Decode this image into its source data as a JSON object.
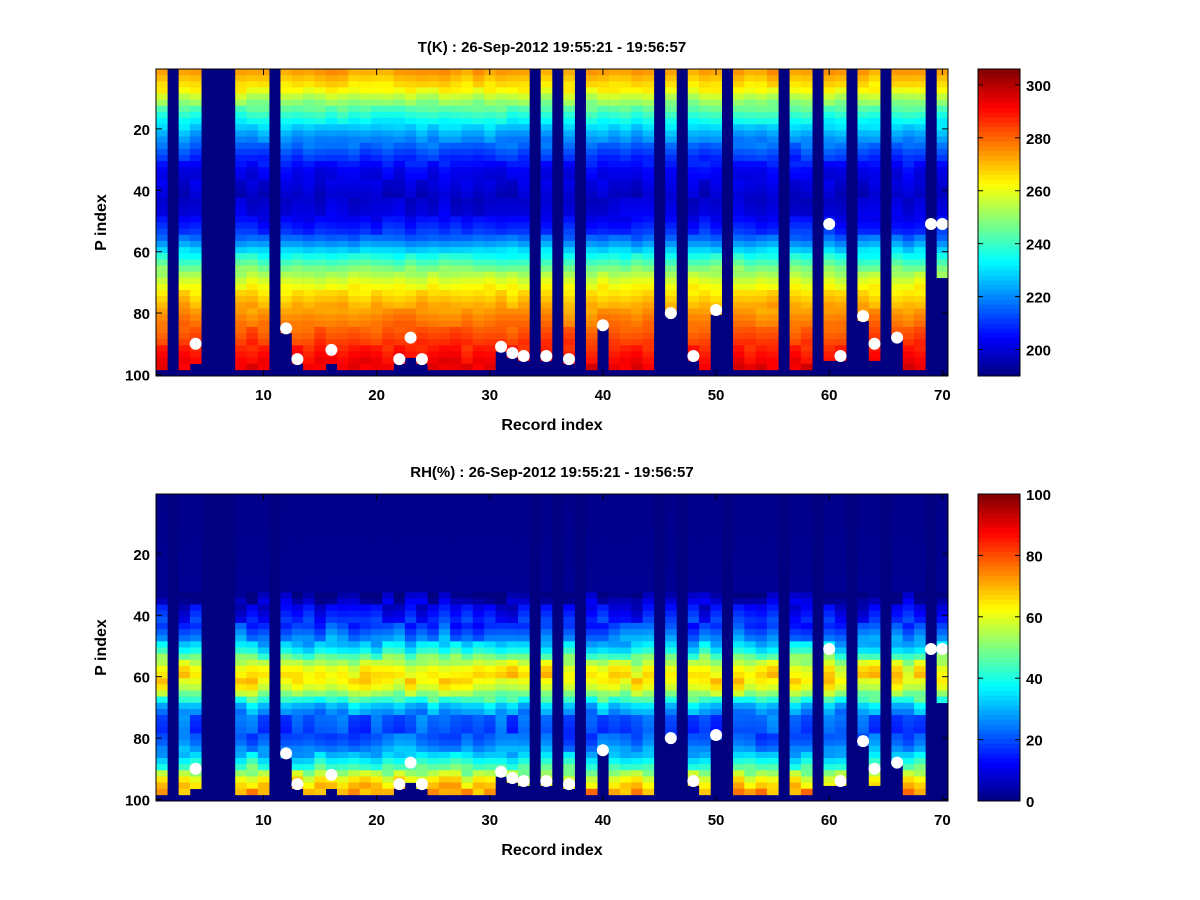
{
  "chart_data": [
    {
      "type": "heatmap",
      "title": "T(K) : 26-Sep-2012 19:55:21 - 19:56:57",
      "xlabel": "Record index",
      "ylabel": "P index",
      "xlim": [
        0.5,
        70.5
      ],
      "ylim": [
        0.5,
        100.5
      ],
      "y_reversed": true,
      "grid": false,
      "colormap": "jet",
      "xticks": [
        10,
        20,
        30,
        40,
        50,
        60,
        70
      ],
      "yticks": [
        20,
        40,
        60,
        80,
        100
      ],
      "colorbar": {
        "range": [
          190,
          306
        ],
        "ticks": [
          200,
          220,
          240,
          260,
          280,
          300
        ]
      },
      "temperature_profile_K": [
        [
          1,
          275
        ],
        [
          5,
          268
        ],
        [
          8,
          262
        ],
        [
          10,
          255
        ],
        [
          13,
          246
        ],
        [
          17,
          236
        ],
        [
          22,
          224
        ],
        [
          28,
          213
        ],
        [
          34,
          203
        ],
        [
          42,
          198
        ],
        [
          48,
          201
        ],
        [
          54,
          210
        ],
        [
          58,
          222
        ],
        [
          62,
          236
        ],
        [
          66,
          248
        ],
        [
          70,
          258
        ],
        [
          74,
          266
        ],
        [
          78,
          272
        ],
        [
          82,
          277
        ],
        [
          88,
          283
        ],
        [
          93,
          289
        ],
        [
          100,
          296
        ]
      ],
      "profile_columns": [
        1,
        3,
        4,
        8,
        9,
        10,
        12,
        13,
        14,
        15,
        16,
        17,
        18,
        19,
        20,
        21,
        22,
        23,
        24,
        25,
        26,
        27,
        28,
        29,
        30,
        31,
        32,
        33,
        35,
        37,
        39,
        40,
        41,
        42,
        43,
        44,
        46,
        48,
        49,
        50,
        52,
        53,
        54,
        55,
        57,
        58,
        60,
        61,
        63,
        64,
        66,
        67,
        68,
        70
      ],
      "surface_levels": [
        {
          "x": 1,
          "y": 98
        },
        {
          "x": 3,
          "y": 98
        },
        {
          "x": 4,
          "y": 96
        },
        {
          "x": 8,
          "y": 98
        },
        {
          "x": 9,
          "y": 98
        },
        {
          "x": 10,
          "y": 98
        },
        {
          "x": 12,
          "y": 86
        },
        {
          "x": 13,
          "y": 96
        },
        {
          "x": 14,
          "y": 98
        },
        {
          "x": 15,
          "y": 98
        },
        {
          "x": 16,
          "y": 96
        },
        {
          "x": 17,
          "y": 98
        },
        {
          "x": 18,
          "y": 98
        },
        {
          "x": 19,
          "y": 98
        },
        {
          "x": 20,
          "y": 98
        },
        {
          "x": 21,
          "y": 98
        },
        {
          "x": 22,
          "y": 96
        },
        {
          "x": 23,
          "y": 94
        },
        {
          "x": 24,
          "y": 96
        },
        {
          "x": 25,
          "y": 98
        },
        {
          "x": 26,
          "y": 98
        },
        {
          "x": 27,
          "y": 98
        },
        {
          "x": 28,
          "y": 98
        },
        {
          "x": 29,
          "y": 98
        },
        {
          "x": 30,
          "y": 98
        },
        {
          "x": 31,
          "y": 92
        },
        {
          "x": 32,
          "y": 94
        },
        {
          "x": 33,
          "y": 95
        },
        {
          "x": 35,
          "y": 95
        },
        {
          "x": 37,
          "y": 96
        },
        {
          "x": 39,
          "y": 98
        },
        {
          "x": 40,
          "y": 84
        },
        {
          "x": 41,
          "y": 98
        },
        {
          "x": 42,
          "y": 98
        },
        {
          "x": 43,
          "y": 98
        },
        {
          "x": 44,
          "y": 98
        },
        {
          "x": 46,
          "y": 80
        },
        {
          "x": 48,
          "y": 95
        },
        {
          "x": 49,
          "y": 98
        },
        {
          "x": 50,
          "y": 80
        },
        {
          "x": 52,
          "y": 98
        },
        {
          "x": 53,
          "y": 98
        },
        {
          "x": 54,
          "y": 98
        },
        {
          "x": 55,
          "y": 98
        },
        {
          "x": 57,
          "y": 98
        },
        {
          "x": 58,
          "y": 98
        },
        {
          "x": 60,
          "y": 95
        },
        {
          "x": 61,
          "y": 95
        },
        {
          "x": 63,
          "y": 82
        },
        {
          "x": 64,
          "y": 95
        },
        {
          "x": 66,
          "y": 88
        },
        {
          "x": 67,
          "y": 98
        },
        {
          "x": 68,
          "y": 98
        },
        {
          "x": 70,
          "y": 68
        }
      ],
      "markers": [
        {
          "x": 4,
          "y": 90
        },
        {
          "x": 12,
          "y": 85
        },
        {
          "x": 13,
          "y": 95
        },
        {
          "x": 16,
          "y": 92
        },
        {
          "x": 22,
          "y": 95
        },
        {
          "x": 23,
          "y": 88
        },
        {
          "x": 24,
          "y": 95
        },
        {
          "x": 31,
          "y": 91
        },
        {
          "x": 32,
          "y": 93
        },
        {
          "x": 33,
          "y": 94
        },
        {
          "x": 35,
          "y": 94
        },
        {
          "x": 37,
          "y": 95
        },
        {
          "x": 40,
          "y": 84
        },
        {
          "x": 46,
          "y": 80
        },
        {
          "x": 48,
          "y": 94
        },
        {
          "x": 50,
          "y": 79
        },
        {
          "x": 60,
          "y": 51
        },
        {
          "x": 61,
          "y": 94
        },
        {
          "x": 63,
          "y": 81
        },
        {
          "x": 64,
          "y": 90
        },
        {
          "x": 66,
          "y": 88
        },
        {
          "x": 69,
          "y": 51
        },
        {
          "x": 70,
          "y": 51
        }
      ]
    },
    {
      "type": "heatmap",
      "title": "RH(%) : 26-Sep-2012 19:55:21 - 19:56:57",
      "xlabel": "Record index",
      "ylabel": "P index",
      "xlim": [
        0.5,
        70.5
      ],
      "ylim": [
        0.5,
        100.5
      ],
      "y_reversed": true,
      "grid": false,
      "colormap": "jet",
      "xticks": [
        10,
        20,
        30,
        40,
        50,
        60,
        70
      ],
      "yticks": [
        20,
        40,
        60,
        80,
        100
      ],
      "colorbar": {
        "range": [
          0,
          100
        ],
        "ticks": [
          0,
          20,
          40,
          60,
          80,
          100
        ]
      },
      "humidity_profile_pct": [
        [
          1,
          1
        ],
        [
          34,
          2
        ],
        [
          38,
          10
        ],
        [
          44,
          18
        ],
        [
          48,
          26
        ],
        [
          52,
          38
        ],
        [
          55,
          52
        ],
        [
          58,
          62
        ],
        [
          61,
          66
        ],
        [
          64,
          60
        ],
        [
          67,
          48
        ],
        [
          70,
          32
        ],
        [
          74,
          22
        ],
        [
          78,
          20
        ],
        [
          82,
          24
        ],
        [
          86,
          32
        ],
        [
          90,
          45
        ],
        [
          94,
          62
        ],
        [
          98,
          72
        ],
        [
          100,
          78
        ]
      ],
      "profile_columns": [
        1,
        3,
        4,
        8,
        9,
        10,
        12,
        13,
        14,
        15,
        16,
        17,
        18,
        19,
        20,
        21,
        22,
        23,
        24,
        25,
        26,
        27,
        28,
        29,
        30,
        31,
        32,
        33,
        35,
        37,
        39,
        40,
        41,
        42,
        43,
        44,
        46,
        48,
        49,
        50,
        52,
        53,
        54,
        55,
        57,
        58,
        60,
        61,
        63,
        64,
        66,
        67,
        68,
        70
      ],
      "surface_levels": [
        {
          "x": 1,
          "y": 98
        },
        {
          "x": 3,
          "y": 98
        },
        {
          "x": 4,
          "y": 96
        },
        {
          "x": 8,
          "y": 98
        },
        {
          "x": 9,
          "y": 98
        },
        {
          "x": 10,
          "y": 98
        },
        {
          "x": 12,
          "y": 86
        },
        {
          "x": 13,
          "y": 96
        },
        {
          "x": 14,
          "y": 98
        },
        {
          "x": 15,
          "y": 98
        },
        {
          "x": 16,
          "y": 96
        },
        {
          "x": 17,
          "y": 98
        },
        {
          "x": 18,
          "y": 98
        },
        {
          "x": 19,
          "y": 98
        },
        {
          "x": 20,
          "y": 98
        },
        {
          "x": 21,
          "y": 98
        },
        {
          "x": 22,
          "y": 96
        },
        {
          "x": 23,
          "y": 94
        },
        {
          "x": 24,
          "y": 96
        },
        {
          "x": 25,
          "y": 98
        },
        {
          "x": 26,
          "y": 98
        },
        {
          "x": 27,
          "y": 98
        },
        {
          "x": 28,
          "y": 98
        },
        {
          "x": 29,
          "y": 98
        },
        {
          "x": 30,
          "y": 98
        },
        {
          "x": 31,
          "y": 92
        },
        {
          "x": 32,
          "y": 94
        },
        {
          "x": 33,
          "y": 95
        },
        {
          "x": 35,
          "y": 95
        },
        {
          "x": 37,
          "y": 96
        },
        {
          "x": 39,
          "y": 98
        },
        {
          "x": 40,
          "y": 84
        },
        {
          "x": 41,
          "y": 98
        },
        {
          "x": 42,
          "y": 98
        },
        {
          "x": 43,
          "y": 98
        },
        {
          "x": 44,
          "y": 98
        },
        {
          "x": 46,
          "y": 80
        },
        {
          "x": 48,
          "y": 95
        },
        {
          "x": 49,
          "y": 98
        },
        {
          "x": 50,
          "y": 80
        },
        {
          "x": 52,
          "y": 98
        },
        {
          "x": 53,
          "y": 98
        },
        {
          "x": 54,
          "y": 98
        },
        {
          "x": 55,
          "y": 98
        },
        {
          "x": 57,
          "y": 98
        },
        {
          "x": 58,
          "y": 98
        },
        {
          "x": 60,
          "y": 95
        },
        {
          "x": 61,
          "y": 95
        },
        {
          "x": 63,
          "y": 82
        },
        {
          "x": 64,
          "y": 95
        },
        {
          "x": 66,
          "y": 88
        },
        {
          "x": 67,
          "y": 98
        },
        {
          "x": 68,
          "y": 98
        },
        {
          "x": 70,
          "y": 68
        }
      ],
      "markers": [
        {
          "x": 4,
          "y": 90
        },
        {
          "x": 12,
          "y": 85
        },
        {
          "x": 13,
          "y": 95
        },
        {
          "x": 16,
          "y": 92
        },
        {
          "x": 22,
          "y": 95
        },
        {
          "x": 23,
          "y": 88
        },
        {
          "x": 24,
          "y": 95
        },
        {
          "x": 31,
          "y": 91
        },
        {
          "x": 32,
          "y": 93
        },
        {
          "x": 33,
          "y": 94
        },
        {
          "x": 35,
          "y": 94
        },
        {
          "x": 37,
          "y": 95
        },
        {
          "x": 40,
          "y": 84
        },
        {
          "x": 46,
          "y": 80
        },
        {
          "x": 48,
          "y": 94
        },
        {
          "x": 50,
          "y": 79
        },
        {
          "x": 60,
          "y": 51
        },
        {
          "x": 61,
          "y": 94
        },
        {
          "x": 63,
          "y": 81
        },
        {
          "x": 64,
          "y": 90
        },
        {
          "x": 66,
          "y": 88
        },
        {
          "x": 69,
          "y": 51
        },
        {
          "x": 70,
          "y": 51
        }
      ]
    }
  ]
}
